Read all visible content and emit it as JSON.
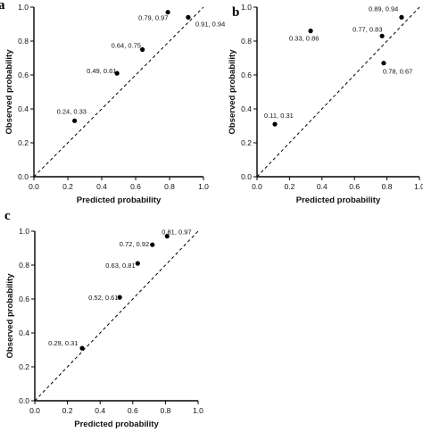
{
  "chart_data": [
    {
      "type": "scatter",
      "panel": "a",
      "xlabel": "Predicted probability",
      "ylabel": "Observed probability",
      "xlim": [
        0,
        1.0
      ],
      "ylim": [
        0,
        1.0
      ],
      "ticks": [
        "0.0",
        "0.2",
        "0.4",
        "0.6",
        "0.8",
        "1.0"
      ],
      "reference_line": "dashed diagonal y = x",
      "grid": false,
      "points": [
        {
          "x": 0.24,
          "y": 0.33,
          "label": "0.24, 0.33"
        },
        {
          "x": 0.49,
          "y": 0.61,
          "label": "0.49, 0.61"
        },
        {
          "x": 0.64,
          "y": 0.75,
          "label": "0.64, 0.75"
        },
        {
          "x": 0.79,
          "y": 0.97,
          "label": "0.79, 0.97"
        },
        {
          "x": 0.91,
          "y": 0.94,
          "label": "0.91, 0.94"
        }
      ]
    },
    {
      "type": "scatter",
      "panel": "b",
      "xlabel": "Predicted probability",
      "ylabel": "Observed probability",
      "xlim": [
        0,
        1.0
      ],
      "ylim": [
        0,
        1.0
      ],
      "ticks": [
        "0.0",
        "0.2",
        "0.4",
        "0.6",
        "0.8",
        "1.0"
      ],
      "reference_line": "dashed diagonal y = x",
      "grid": false,
      "points": [
        {
          "x": 0.11,
          "y": 0.31,
          "label": "0.11, 0.31"
        },
        {
          "x": 0.33,
          "y": 0.86,
          "label": "0.33, 0.86"
        },
        {
          "x": 0.77,
          "y": 0.83,
          "label": "0.77, 0.83"
        },
        {
          "x": 0.78,
          "y": 0.67,
          "label": "0.78, 0.67"
        },
        {
          "x": 0.89,
          "y": 0.94,
          "label": "0.89, 0.94"
        }
      ]
    },
    {
      "type": "scatter",
      "panel": "c",
      "xlabel": "Predicted probability",
      "ylabel": "Observed probability",
      "xlim": [
        0,
        1.0
      ],
      "ylim": [
        0,
        1.0
      ],
      "ticks": [
        "0.0",
        "0.2",
        "0.4",
        "0.6",
        "0.8",
        "1.0"
      ],
      "reference_line": "dashed diagonal y = x",
      "grid": false,
      "points": [
        {
          "x": 0.29,
          "y": 0.31,
          "label": "0.29, 0.31"
        },
        {
          "x": 0.52,
          "y": 0.61,
          "label": "0.52, 0.61"
        },
        {
          "x": 0.63,
          "y": 0.81,
          "label": "0.63, 0.81"
        },
        {
          "x": 0.72,
          "y": 0.92,
          "label": "0.72, 0.92"
        },
        {
          "x": 0.81,
          "y": 0.97,
          "label": "0.81, 0.97"
        }
      ]
    }
  ]
}
